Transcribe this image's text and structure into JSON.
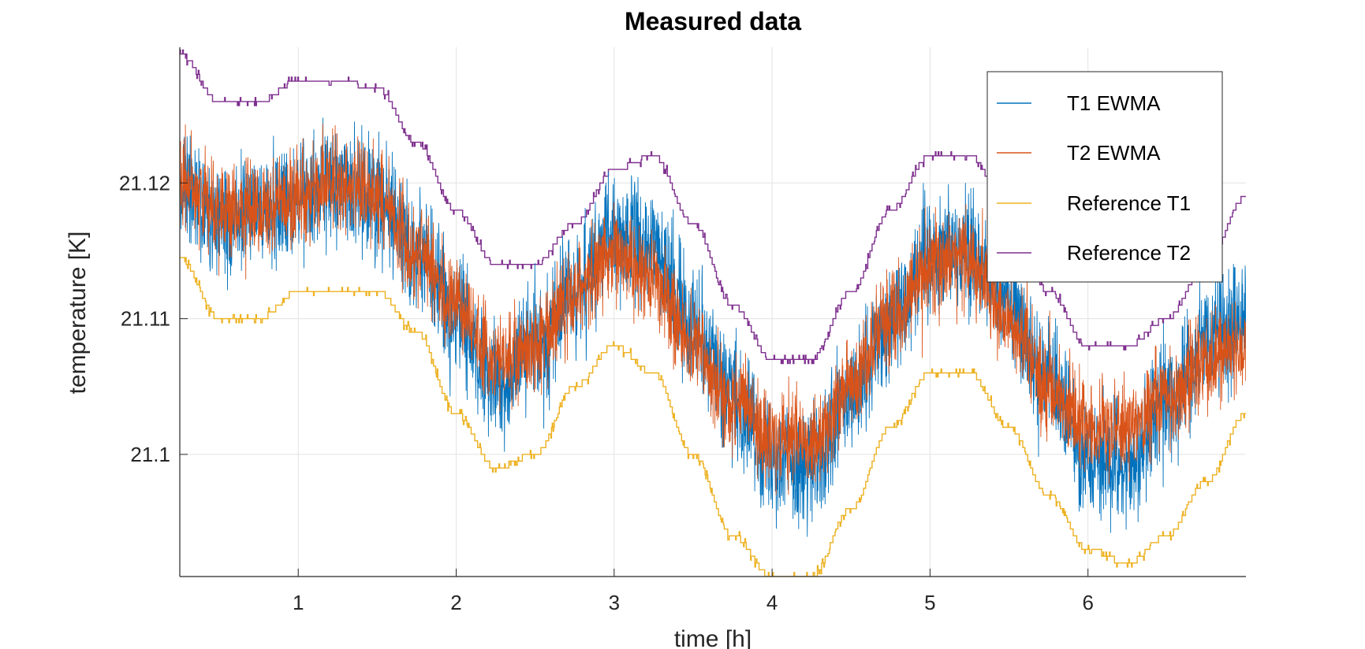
{
  "chart_data": {
    "type": "line",
    "title": "Measured data",
    "xlabel": "time [h]",
    "ylabel": "temperature [K]",
    "xlim": [
      0.25,
      7.0
    ],
    "ylim": [
      21.091,
      21.13
    ],
    "x_ticks": [
      1,
      2,
      3,
      4,
      5,
      6
    ],
    "x_tick_labels": [
      "1",
      "2",
      "3",
      "4",
      "5",
      "6"
    ],
    "y_ticks": [
      21.1,
      21.11,
      21.12
    ],
    "y_tick_labels": [
      "21.1",
      "21.11",
      "21.12"
    ],
    "grid": true,
    "legend_position": "top-right",
    "series": [
      {
        "name": "T1 EWMA",
        "color": "#0072BD",
        "noise_amplitude": 0.0035,
        "x": [
          0.25,
          0.5,
          0.75,
          1.0,
          1.25,
          1.5,
          1.75,
          2.0,
          2.25,
          2.5,
          2.75,
          3.0,
          3.25,
          3.5,
          3.75,
          4.0,
          4.25,
          4.5,
          4.75,
          5.0,
          5.25,
          5.5,
          5.75,
          6.0,
          6.25,
          6.5,
          6.75,
          7.0
        ],
        "values": [
          21.12,
          21.117,
          21.118,
          21.119,
          21.12,
          21.119,
          21.115,
          21.11,
          21.105,
          21.108,
          21.112,
          21.116,
          21.115,
          21.11,
          21.104,
          21.1,
          21.099,
          21.104,
          21.11,
          21.115,
          21.115,
          21.111,
          21.105,
          21.1,
          21.099,
          21.104,
          21.108,
          21.11
        ]
      },
      {
        "name": "T2 EWMA",
        "color": "#D95319",
        "noise_amplitude": 0.0028,
        "x": [
          0.25,
          0.5,
          0.75,
          1.0,
          1.25,
          1.5,
          1.75,
          2.0,
          2.25,
          2.5,
          2.75,
          3.0,
          3.25,
          3.5,
          3.75,
          4.0,
          4.25,
          4.5,
          4.75,
          5.0,
          5.25,
          5.5,
          5.75,
          6.0,
          6.25,
          6.5,
          6.75,
          7.0
        ],
        "values": [
          21.12,
          21.118,
          21.118,
          21.119,
          21.12,
          21.119,
          21.115,
          21.111,
          21.107,
          21.108,
          21.112,
          21.115,
          21.113,
          21.108,
          21.104,
          21.101,
          21.101,
          21.105,
          21.11,
          21.114,
          21.114,
          21.11,
          21.105,
          21.102,
          21.102,
          21.104,
          21.107,
          21.108
        ]
      },
      {
        "name": "Reference T1",
        "color": "#EDB120",
        "step": 0.0005,
        "x": [
          0.25,
          0.5,
          0.75,
          1.0,
          1.25,
          1.5,
          1.75,
          2.0,
          2.25,
          2.5,
          2.75,
          3.0,
          3.25,
          3.5,
          3.75,
          4.0,
          4.25,
          4.5,
          4.75,
          5.0,
          5.25,
          5.5,
          5.75,
          6.0,
          6.25,
          6.5,
          6.75,
          7.0
        ],
        "values": [
          21.1145,
          21.11,
          21.11,
          21.112,
          21.112,
          21.112,
          21.109,
          21.103,
          21.099,
          21.1,
          21.105,
          21.108,
          21.106,
          21.1,
          21.094,
          21.091,
          21.091,
          21.096,
          21.102,
          21.106,
          21.106,
          21.102,
          21.097,
          21.093,
          21.092,
          21.094,
          21.098,
          21.103
        ]
      },
      {
        "name": "Reference T2",
        "color": "#7E2F8E",
        "step": 0.0005,
        "x": [
          0.25,
          0.5,
          0.75,
          1.0,
          1.25,
          1.5,
          1.75,
          2.0,
          2.25,
          2.5,
          2.75,
          3.0,
          3.25,
          3.5,
          3.75,
          4.0,
          4.25,
          4.5,
          4.75,
          5.0,
          5.25,
          5.5,
          5.75,
          6.0,
          6.25,
          6.5,
          6.75,
          7.0
        ],
        "values": [
          21.1295,
          21.126,
          21.126,
          21.1275,
          21.1275,
          21.127,
          21.123,
          21.118,
          21.114,
          21.114,
          21.117,
          21.121,
          21.122,
          21.117,
          21.111,
          21.107,
          21.107,
          21.112,
          21.118,
          21.122,
          21.122,
          21.118,
          21.112,
          21.108,
          21.108,
          21.11,
          21.114,
          21.119
        ]
      }
    ]
  }
}
